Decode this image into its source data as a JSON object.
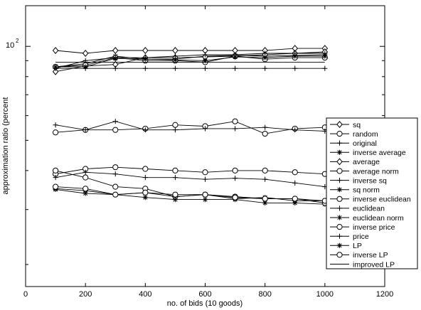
{
  "chart_data": {
    "type": "line",
    "xlabel": "no. of bids (10 goods)",
    "ylabel": "approximation ratio (percent",
    "xlim": [
      0,
      1200
    ],
    "x_ticks": [
      0,
      200,
      400,
      600,
      800,
      1000,
      1200
    ],
    "y_scale": "log",
    "ylim": [
      17,
      135
    ],
    "y_tick_label": {
      "base": "10",
      "exponent": "2",
      "value": 100
    },
    "grid": false,
    "legend_position": "right",
    "x": [
      100,
      200,
      300,
      400,
      500,
      600,
      700,
      800,
      900,
      1000
    ],
    "series": [
      {
        "name": "sq",
        "marker": "diamond",
        "values": [
          97,
          95,
          97,
          97,
          97,
          97,
          97,
          97,
          98.5,
          98.5
        ]
      },
      {
        "name": "random",
        "marker": "circle",
        "values": [
          53,
          54,
          54,
          54.5,
          56,
          55.5,
          57.5,
          52.5,
          54.5,
          55
        ]
      },
      {
        "name": "original",
        "marker": "plus",
        "values": [
          56,
          54,
          57.5,
          54,
          54,
          54.5,
          54.5,
          55,
          54,
          53.5
        ]
      },
      {
        "name": "inverse average",
        "marker": "star",
        "values": [
          86,
          88,
          93,
          91,
          91,
          93,
          93.5,
          93,
          93.5,
          94
        ]
      },
      {
        "name": "average",
        "marker": "diamond",
        "values": [
          83,
          86.5,
          87.5,
          92,
          92,
          92.5,
          93,
          94,
          95,
          96
        ]
      },
      {
        "name": "average norm",
        "marker": "circle",
        "values": [
          86,
          87,
          92,
          90,
          90,
          89,
          93,
          91,
          92,
          92
        ]
      },
      {
        "name": "inverse sq",
        "marker": "plus",
        "values": [
          85,
          90,
          92,
          92,
          93,
          94,
          94,
          95,
          95,
          95
        ]
      },
      {
        "name": "sq norm",
        "marker": "star",
        "values": [
          86,
          86,
          91.5,
          91,
          90.5,
          90,
          92.5,
          92,
          93,
          93
        ]
      },
      {
        "name": "inverse euclidean",
        "marker": "circle",
        "values": [
          39,
          40.5,
          41,
          40.5,
          40,
          39.5,
          40,
          40,
          39.5,
          39
        ]
      },
      {
        "name": "euclidean",
        "marker": "plus",
        "values": [
          38,
          39.5,
          39,
          38,
          38,
          37.5,
          37.8,
          37.5,
          36.5,
          35.5
        ]
      },
      {
        "name": "euclidean norm",
        "marker": "star",
        "values": [
          35,
          34.5,
          33.5,
          32.8,
          32.3,
          32.3,
          32.3,
          31.5,
          31.5,
          31.2
        ]
      },
      {
        "name": "inverse price",
        "marker": "circle",
        "values": [
          40,
          38,
          35.5,
          35,
          33,
          33.5,
          33,
          32.5,
          32.5,
          31.5
        ]
      },
      {
        "name": "price",
        "marker": "plus",
        "values": [
          85,
          85,
          85,
          85,
          85,
          85,
          85,
          85,
          85,
          85
        ]
      },
      {
        "name": "LP",
        "marker": "star",
        "values": [
          34.8,
          33.8,
          33.5,
          34,
          33,
          33.5,
          32.5,
          32.8,
          32,
          32
        ]
      },
      {
        "name": "inverse LP",
        "marker": "circle",
        "values": [
          35.5,
          35,
          33.5,
          34,
          33.5,
          33.5,
          32.8,
          32.5,
          32.5,
          32
        ]
      },
      {
        "name": "improved LP",
        "marker": "none",
        "values": [
          89,
          89,
          89,
          89,
          89,
          89,
          89,
          89,
          89,
          89
        ]
      }
    ]
  }
}
